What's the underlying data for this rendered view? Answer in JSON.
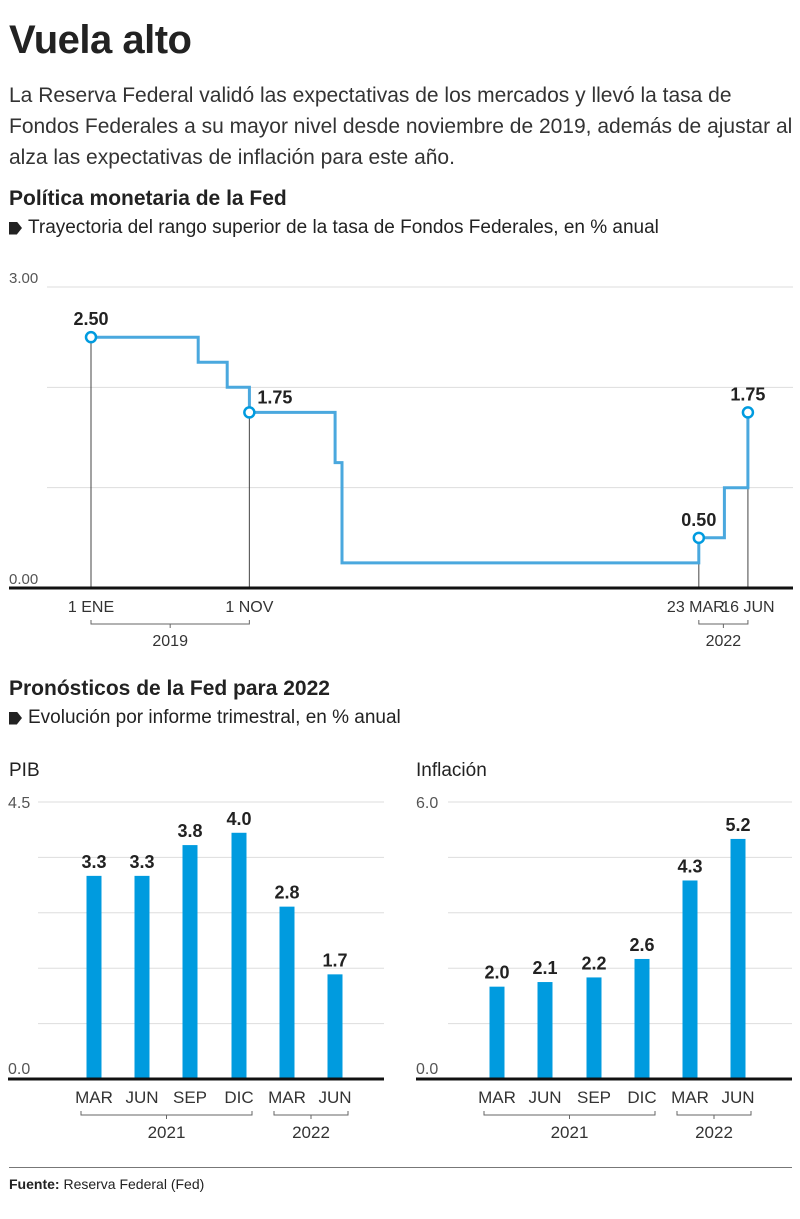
{
  "header": {
    "title": "Vuela alto",
    "lede": "La Reserva Federal validó las expectativas de los mercados y llevó la tasa de Fondos Federales a su mayor nivel desde noviembre de 2019, además de ajustar al alza las expectativas de inflación para este año."
  },
  "colors": {
    "accent": "#009bdf",
    "line": "#4aa8de",
    "text": "#222222",
    "grid": "#dddddd",
    "axis": "#111111"
  },
  "section1": {
    "title": "Política monetaria de la Fed",
    "subtitle": "Trayectoria del rango superior de la tasa de Fondos Federales, en % anual"
  },
  "section2": {
    "title": "Pronósticos de la Fed para 2022",
    "subtitle": "Evolución por informe trimestral, en % anual"
  },
  "footer": {
    "source_label": "Fuente:",
    "source_text": "Reserva Federal (Fed)"
  },
  "chart_data": [
    {
      "type": "line",
      "id": "fed-rate",
      "title": "Política monetaria de la Fed",
      "subtitle": "Trayectoria del rango superior de la tasa de Fondos Federales, en % anual",
      "step": true,
      "ylim": [
        0,
        3
      ],
      "yticks": [
        {
          "value": 3,
          "label": "3.00"
        },
        {
          "value": 2,
          "label": ""
        },
        {
          "value": 1,
          "label": ""
        },
        {
          "value": 0,
          "label": "0.00"
        }
      ],
      "grid": true,
      "xlim": [
        0,
        100
      ],
      "series": [
        {
          "name": "Tasa de Fondos Federales (rango superior)",
          "points": [
            {
              "x": 0,
              "y": 2.5
            },
            {
              "x": 15.5,
              "y": 2.5
            },
            {
              "x": 15.5,
              "y": 2.25
            },
            {
              "x": 19.7,
              "y": 2.25
            },
            {
              "x": 19.7,
              "y": 2.0
            },
            {
              "x": 22.9,
              "y": 2.0
            },
            {
              "x": 22.9,
              "y": 1.75
            },
            {
              "x": 35.3,
              "y": 1.75
            },
            {
              "x": 35.3,
              "y": 1.25
            },
            {
              "x": 36.3,
              "y": 1.25
            },
            {
              "x": 36.3,
              "y": 0.25
            },
            {
              "x": 87.9,
              "y": 0.25
            },
            {
              "x": 87.9,
              "y": 0.5
            },
            {
              "x": 91.6,
              "y": 0.5
            },
            {
              "x": 91.6,
              "y": 1.0
            },
            {
              "x": 95.0,
              "y": 1.0
            },
            {
              "x": 95.0,
              "y": 1.75
            }
          ]
        }
      ],
      "markers": [
        {
          "x": 0,
          "y": 2.5,
          "label": "2.50",
          "date": "1 ENE"
        },
        {
          "x": 22.9,
          "y": 1.75,
          "label": "1.75",
          "date": "1 NOV"
        },
        {
          "x": 87.9,
          "y": 0.5,
          "label": "0.50",
          "date": "23 MAR"
        },
        {
          "x": 95.0,
          "y": 1.75,
          "label": "1.75",
          "date": "16 JUN"
        }
      ],
      "year_groups": [
        {
          "label": "2019",
          "from": 0,
          "to": 1
        },
        {
          "label": "2022",
          "from": 2,
          "to": 3
        }
      ]
    },
    {
      "type": "bar",
      "id": "pib",
      "title": "PIB",
      "categories": [
        "MAR",
        "JUN",
        "SEP",
        "DIC",
        "MAR",
        "JUN"
      ],
      "values": [
        3.3,
        3.3,
        3.8,
        4.0,
        2.8,
        1.7
      ],
      "value_labels": [
        "3.3",
        "3.3",
        "3.8",
        "4.0",
        "2.8",
        "1.7"
      ],
      "ylim": [
        0,
        4.5
      ],
      "yticks": [
        {
          "value": 4.5,
          "label": "4.5"
        },
        {
          "value": 3.6,
          "label": ""
        },
        {
          "value": 2.7,
          "label": ""
        },
        {
          "value": 1.8,
          "label": ""
        },
        {
          "value": 0.9,
          "label": ""
        },
        {
          "value": 0,
          "label": "0.0"
        }
      ],
      "grid": true,
      "year_groups": [
        {
          "label": "2021",
          "from": 0,
          "to": 3
        },
        {
          "label": "2022",
          "from": 4,
          "to": 5
        }
      ]
    },
    {
      "type": "bar",
      "id": "inflacion",
      "title": "Inflación",
      "categories": [
        "MAR",
        "JUN",
        "SEP",
        "DIC",
        "MAR",
        "JUN"
      ],
      "values": [
        2.0,
        2.1,
        2.2,
        2.6,
        4.3,
        5.2
      ],
      "value_labels": [
        "2.0",
        "2.1",
        "2.2",
        "2.6",
        "4.3",
        "5.2"
      ],
      "ylim": [
        0,
        6.0
      ],
      "yticks": [
        {
          "value": 6.0,
          "label": "6.0"
        },
        {
          "value": 4.8,
          "label": ""
        },
        {
          "value": 3.6,
          "label": ""
        },
        {
          "value": 2.4,
          "label": ""
        },
        {
          "value": 1.2,
          "label": ""
        },
        {
          "value": 0,
          "label": "0.0"
        }
      ],
      "grid": true,
      "year_groups": [
        {
          "label": "2021",
          "from": 0,
          "to": 3
        },
        {
          "label": "2022",
          "from": 4,
          "to": 5
        }
      ]
    }
  ]
}
